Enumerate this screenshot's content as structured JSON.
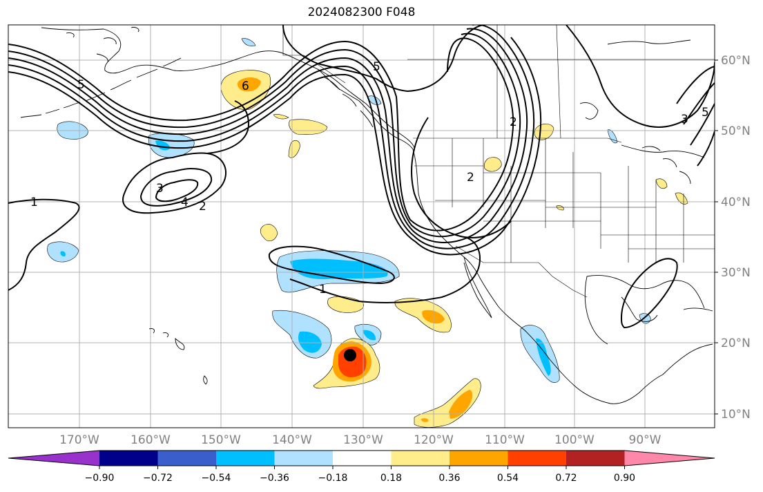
{
  "title": "2024082300 F048",
  "map": {
    "lon_range": [
      -180,
      -80
    ],
    "lat_range": [
      8,
      65
    ],
    "lat_labels": [
      "10°N",
      "20°N",
      "30°N",
      "40°N",
      "50°N",
      "60°N"
    ],
    "lon_labels": [
      "170°W",
      "160°W",
      "150°W",
      "140°W",
      "130°W",
      "120°W",
      "110°W",
      "100°W",
      "90°W"
    ],
    "contour_labels": [
      "1",
      "1",
      "2",
      "2",
      "2",
      "3",
      "3",
      "4",
      "5",
      "5",
      "5",
      "6"
    ],
    "marker": {
      "name": "storm-center-marker",
      "color": "#000000"
    }
  },
  "colorbar": {
    "colors": [
      "#9932CC",
      "#00008B",
      "#3A5FCD",
      "#00BFFF",
      "#B0E2FF",
      "#FFFFFF",
      "#FFEC8B",
      "#FFA500",
      "#FF4000",
      "#B22222",
      "#FF88AA"
    ],
    "tick_labels": [
      "−0.90",
      "−0.72",
      "−0.54",
      "−0.36",
      "−0.18",
      "0.18",
      "0.36",
      "0.54",
      "0.72",
      "0.90"
    ]
  }
}
